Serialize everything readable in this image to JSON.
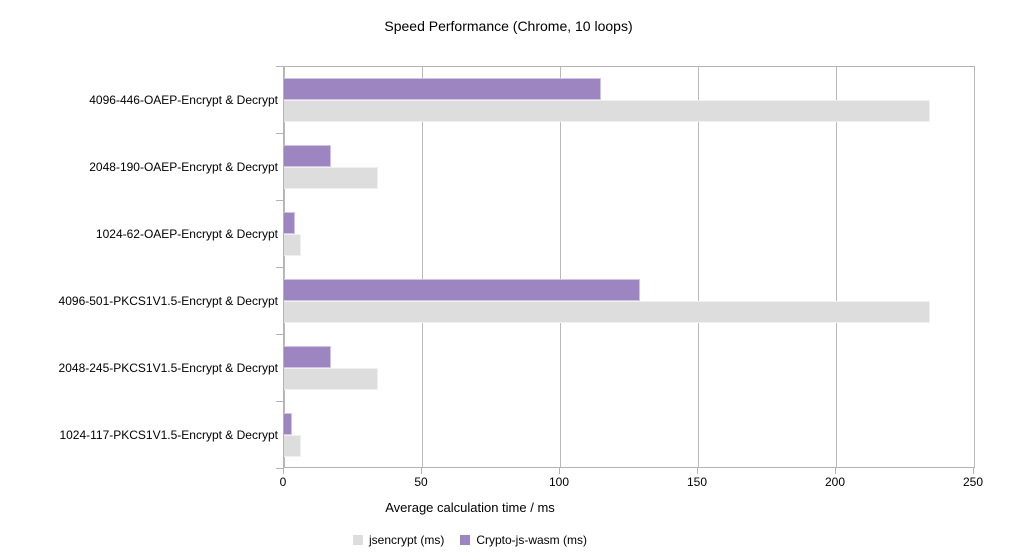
{
  "chart_data": {
    "type": "bar",
    "orientation": "horizontal",
    "title": "Speed Performance (Chrome, 10 loops)",
    "categories": [
      "4096-446-OAEP-Encrypt & Decrypt",
      "2048-190-OAEP-Encrypt & Decrypt",
      "1024-62-OAEP-Encrypt & Decrypt",
      "4096-501-PKCS1V1.5-Encrypt & Decrypt",
      "2048-245-PKCS1V1.5-Encrypt & Decrypt",
      "1024-117-PKCS1V1.5-Encrypt & Decrypt"
    ],
    "series": [
      {
        "name": "jsencrypt (ms)",
        "color": "#dddddd",
        "border_color": "#f0f0f0",
        "values": [
          234,
          34,
          6,
          234,
          34,
          6
        ]
      },
      {
        "name": "Crypto-js-wasm (ms)",
        "color": "#9c85c0",
        "border_color": "#cfc5e2",
        "values": [
          115,
          17,
          4,
          129,
          17,
          3
        ]
      }
    ],
    "xlabel": "Average calculation time / ms",
    "xticks": [
      0,
      50,
      100,
      150,
      200,
      250
    ],
    "xlim": [
      0,
      250
    ],
    "grid": true,
    "legend_position": "bottom",
    "axis_color": "#b3b3b3",
    "text_color": "#000000",
    "background_color": "#ffffff"
  }
}
